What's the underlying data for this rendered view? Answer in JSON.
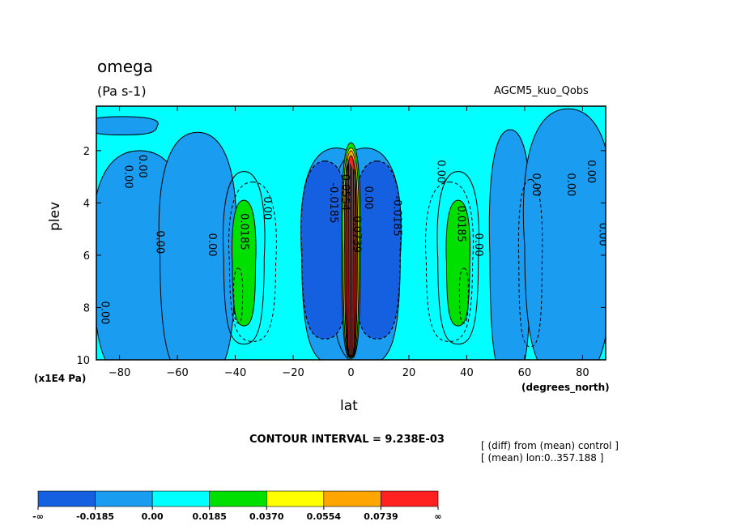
{
  "chart_data": {
    "type": "heatmap",
    "title": "omega",
    "units": "(Pa s-1)",
    "run_label": "AGCM5_kuo_Qobs",
    "xlabel": "lat",
    "x_unit_label": "(degrees_north)",
    "ylabel": "plev",
    "y_scale_label": "(x1E4 Pa)",
    "xlim": [
      -88,
      88
    ],
    "ylim": [
      10,
      0.3
    ],
    "x_ticks": [
      -80,
      -60,
      -40,
      -20,
      0,
      20,
      40,
      60,
      80
    ],
    "y_ticks": [
      2,
      4,
      6,
      8,
      10
    ],
    "contour_interval": "CONTOUR INTERVAL = 9.238E-03",
    "notes": [
      "[ (diff) from (mean) control ]",
      "[ (mean) lon:0..357.188 ]"
    ],
    "contour_labels": [
      "0.00",
      "0.0185",
      "-0.0185",
      "0.0554",
      "0.0739"
    ],
    "colorbar": {
      "labels": [
        "-∞",
        "-0.0185",
        "0.00",
        "0.0185",
        "0.0370",
        "0.0554",
        "0.0739",
        "∞"
      ],
      "colors": [
        "#1560e0",
        "#1a9cf0",
        "#00ffff",
        "#00e000",
        "#ffff00",
        "#ffa500",
        "#ff2020"
      ]
    },
    "features": [
      {
        "lat": 0,
        "plev_top": 1.8,
        "plev_bottom": 9.9,
        "value": 0.0739,
        "desc": "strong equatorial downward omega maximum"
      },
      {
        "lat": -6,
        "plev_top": 2.5,
        "plev_bottom": 9.0,
        "value": -0.0185,
        "desc": "ascent flanking equator"
      },
      {
        "lat": 6,
        "plev_top": 2.5,
        "plev_bottom": 9.0,
        "value": -0.0185,
        "desc": "ascent flanking equator"
      },
      {
        "lat": -37,
        "plev_top": 4.0,
        "plev_bottom": 8.7,
        "value": 0.0185,
        "desc": "subtropical subsidence"
      },
      {
        "lat": 37,
        "plev_top": 4.0,
        "plev_bottom": 8.7,
        "value": 0.0185,
        "desc": "subtropical subsidence"
      }
    ]
  }
}
